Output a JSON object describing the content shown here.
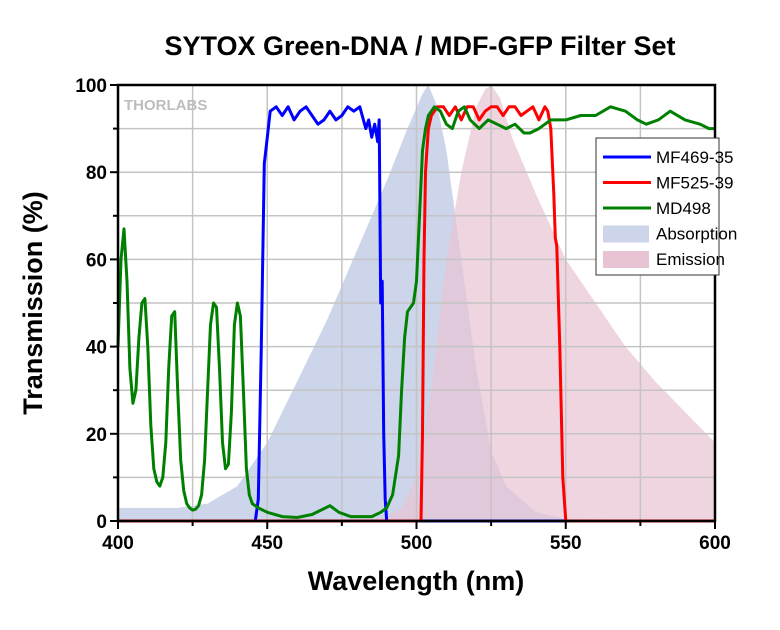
{
  "chart_data": {
    "type": "line",
    "title": "SYTOX Green-DNA / MDF-GFP Filter Set",
    "xlabel": "Wavelength (nm)",
    "ylabel": "Transmission (%)",
    "xlim": [
      400,
      600
    ],
    "ylim": [
      0,
      100
    ],
    "xticks": [
      400,
      450,
      500,
      550,
      600
    ],
    "yticks": [
      0,
      20,
      40,
      60,
      80,
      100
    ],
    "grid": true,
    "legend_position": "right",
    "watermark": "THORLABS",
    "series": [
      {
        "name": "Absorption",
        "kind": "area",
        "color": "#ccd5ea",
        "x": [
          400,
          420,
          430,
          440,
          450,
          460,
          470,
          480,
          490,
          497,
          502,
          504,
          507,
          510,
          515,
          520,
          525,
          530,
          540,
          550,
          600
        ],
        "y": [
          3,
          3,
          4,
          8,
          18,
          32,
          46,
          62,
          78,
          90,
          98,
          100,
          95,
          85,
          60,
          35,
          16,
          8,
          2,
          0.5,
          0
        ]
      },
      {
        "name": "Emission",
        "kind": "area",
        "color": "#e8c3d3",
        "x": [
          400,
          485,
          490,
          495,
          500,
          505,
          510,
          515,
          520,
          523,
          525,
          528,
          532,
          540,
          550,
          560,
          570,
          580,
          590,
          600
        ],
        "y": [
          0,
          0,
          1,
          3,
          10,
          30,
          60,
          80,
          95,
          99,
          100,
          97,
          88,
          75,
          60,
          50,
          40,
          32,
          25,
          18
        ]
      },
      {
        "name": "MF469-35",
        "kind": "line",
        "color": "#0000ff",
        "x": [
          400,
          446,
          447,
          448,
          449,
          450,
          451,
          453,
          455,
          457,
          459,
          461,
          463,
          465,
          467,
          469,
          471,
          473,
          475,
          477,
          479,
          481,
          483,
          484,
          485,
          486,
          487,
          487.5,
          488,
          488.5,
          489,
          489.5,
          490,
          600
        ],
        "y": [
          0,
          0,
          5,
          40,
          82,
          88,
          94,
          95,
          93,
          95,
          92,
          94,
          95,
          93,
          91,
          92,
          94,
          92,
          93,
          95,
          94,
          95,
          90,
          92,
          88,
          91,
          87,
          92,
          50,
          55,
          20,
          5,
          0,
          0
        ]
      },
      {
        "name": "MF525-39",
        "kind": "line",
        "color": "#ff0000",
        "x": [
          400,
          501.5,
          502,
          502.5,
          503,
          503.5,
          504,
          505,
          507,
          509,
          511,
          513,
          515,
          517,
          519,
          521,
          523,
          525,
          527,
          529,
          531,
          533,
          535,
          537,
          539,
          541,
          543,
          544,
          545,
          546,
          546.5,
          547,
          548,
          549,
          550,
          600
        ],
        "y": [
          0,
          0,
          20,
          60,
          80,
          85,
          90,
          93,
          95,
          95,
          93,
          95,
          92,
          95,
          95,
          92,
          94,
          95,
          95,
          93,
          95,
          95,
          93,
          94,
          95,
          92,
          95,
          94,
          90,
          75,
          65,
          63,
          40,
          10,
          0,
          0
        ]
      },
      {
        "name": "MD498",
        "kind": "line",
        "color": "#008000",
        "x": [
          400,
          401,
          402,
          403,
          404,
          405,
          406,
          407,
          408,
          409,
          410,
          411,
          412,
          413,
          414,
          415,
          416,
          417,
          418,
          419,
          420,
          421,
          422,
          423,
          424,
          425,
          426,
          427,
          428,
          429,
          430,
          431,
          432,
          433,
          434,
          435,
          436,
          437,
          438,
          439,
          440,
          441,
          442,
          443,
          444,
          445,
          447,
          450,
          455,
          460,
          465,
          468,
          471,
          474,
          478,
          485,
          488,
          490,
          492,
          494,
          495,
          496,
          497,
          498,
          499,
          500,
          501,
          502,
          503,
          504,
          506,
          508,
          510,
          512,
          514,
          516,
          518,
          521,
          524,
          527,
          530,
          533,
          536,
          538,
          541,
          545,
          550,
          555,
          560,
          565,
          570,
          574,
          577,
          581,
          585,
          590,
          595,
          598,
          600
        ],
        "y": [
          40,
          60,
          67,
          55,
          35,
          27,
          30,
          42,
          50,
          51,
          40,
          22,
          12,
          9,
          8,
          10,
          18,
          35,
          47,
          48,
          30,
          14,
          7,
          4,
          3,
          2.5,
          2.7,
          3.5,
          6,
          14,
          30,
          45,
          50,
          49,
          35,
          18,
          12,
          13,
          25,
          45,
          50,
          47,
          30,
          12,
          6,
          4,
          3,
          2,
          1,
          0.8,
          1.5,
          2.5,
          3.5,
          2,
          1,
          1,
          2,
          3,
          6,
          15,
          30,
          42,
          48,
          49,
          50,
          55,
          70,
          85,
          90,
          93,
          95,
          94,
          91,
          90,
          94,
          95,
          92,
          90,
          92,
          91,
          90,
          91,
          89,
          89,
          90,
          92,
          92,
          93,
          93,
          95,
          94,
          92,
          91,
          92,
          94,
          92,
          91,
          90,
          90
        ]
      }
    ]
  }
}
